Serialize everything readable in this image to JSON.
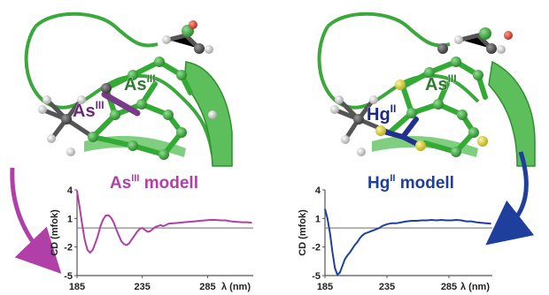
{
  "colors": {
    "as_model": "#b040a8",
    "hg_model": "#1f3f9c",
    "protein": "#3aa83a",
    "as_atom": "#7a3a8a",
    "hg_atom": "#22328c",
    "baseline": "#8a8a8a"
  },
  "structures": {
    "left": {
      "labels": [
        {
          "base": "As",
          "sup": "III"
        },
        {
          "base": "As",
          "sup": "III"
        }
      ]
    },
    "right": {
      "labels": [
        {
          "base": "Hg",
          "sup": "II"
        },
        {
          "base": "As",
          "sup": "III"
        }
      ]
    }
  },
  "chart_data": [
    {
      "type": "line",
      "title": {
        "base": "As",
        "sup": "III",
        "rest": " modell"
      },
      "xlabel": "λ (nm)",
      "ylabel": "CD (mfok)",
      "xlim": [
        185,
        320
      ],
      "ylim": [
        -5,
        4
      ],
      "xticks": [
        "185",
        "235",
        "285"
      ],
      "yticks": [
        "4",
        "1",
        "-2",
        "-5"
      ],
      "baseline": 0,
      "x": [
        185,
        187,
        189,
        191,
        193,
        195,
        197,
        199,
        201,
        203,
        205,
        207,
        209,
        211,
        213,
        215,
        217,
        219,
        221,
        223,
        225,
        227,
        229,
        231,
        233,
        235,
        237,
        239,
        241,
        243,
        245,
        247,
        249,
        251,
        253,
        255,
        259,
        263,
        267,
        271,
        275,
        279,
        283,
        287,
        291,
        295,
        299,
        303,
        307,
        311,
        315,
        319
      ],
      "values": [
        3.9,
        2.2,
        0.3,
        -1.3,
        -2.3,
        -2.6,
        -2.3,
        -1.6,
        -0.8,
        0.2,
        0.9,
        1.3,
        1.35,
        1.1,
        0.6,
        -0.1,
        -0.8,
        -1.4,
        -1.7,
        -1.8,
        -1.6,
        -1.2,
        -0.8,
        -0.4,
        -0.1,
        0.0,
        -0.2,
        -0.4,
        -0.35,
        -0.1,
        0.1,
        0.2,
        0.3,
        0.2,
        0.3,
        0.45,
        0.5,
        0.55,
        0.6,
        0.65,
        0.7,
        0.75,
        0.8,
        0.85,
        0.85,
        0.8,
        0.8,
        0.7,
        0.65,
        0.6,
        0.6,
        0.55
      ]
    },
    {
      "type": "line",
      "title": {
        "base": "Hg",
        "sup": "II",
        "rest": " modell"
      },
      "xlabel": "λ (nm)",
      "ylabel": "CD (mfok)",
      "xlim": [
        185,
        320
      ],
      "ylim": [
        -5,
        4
      ],
      "xticks": [
        "185",
        "235",
        "285"
      ],
      "yticks": [
        "4",
        "1",
        "-2",
        "-5"
      ],
      "baseline": 0,
      "x": [
        185,
        187,
        189,
        191,
        193,
        195,
        197,
        199,
        201,
        203,
        205,
        207,
        209,
        211,
        213,
        215,
        217,
        219,
        221,
        223,
        225,
        227,
        229,
        231,
        233,
        235,
        239,
        243,
        247,
        251,
        255,
        259,
        263,
        267,
        271,
        275,
        279,
        283,
        287,
        291,
        295,
        299,
        303,
        307,
        311,
        315,
        319
      ],
      "values": [
        2.0,
        1.0,
        -0.5,
        -2.5,
        -4.2,
        -4.9,
        -4.7,
        -4.0,
        -3.3,
        -2.9,
        -2.6,
        -2.2,
        -1.8,
        -1.5,
        -1.1,
        -0.8,
        -0.6,
        -0.5,
        -0.4,
        -0.3,
        -0.2,
        -0.1,
        0.0,
        0.2,
        0.3,
        0.4,
        0.5,
        0.5,
        0.6,
        0.7,
        0.75,
        0.75,
        0.8,
        0.8,
        0.85,
        0.8,
        0.85,
        0.8,
        0.8,
        0.85,
        0.8,
        0.7,
        0.7,
        0.6,
        0.55,
        0.5,
        0.45
      ]
    }
  ]
}
